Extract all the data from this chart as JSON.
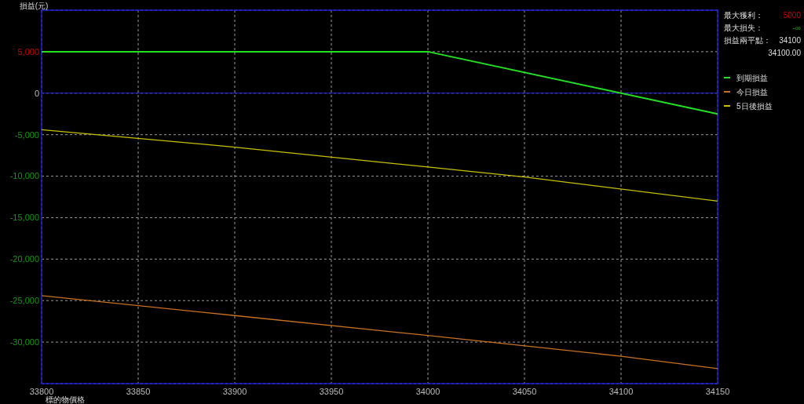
{
  "chart_data": {
    "type": "line",
    "xlabel": "標的物價格",
    "ylabel": "損益(元)",
    "xlim": [
      33800,
      34150
    ],
    "xticks": [
      33800,
      33850,
      33900,
      33950,
      34000,
      34050,
      34100,
      34150
    ],
    "ylim": [
      -35000,
      10000
    ],
    "yticks": [
      {
        "value": 10000,
        "label": null
      },
      {
        "value": 5000,
        "label": "5,000"
      },
      0,
      {
        "value": -5000,
        "label": "-5,000"
      },
      {
        "value": -10000,
        "label": "-10,000"
      },
      {
        "value": -15000,
        "label": "-15,000"
      },
      {
        "value": -20000,
        "label": "-20,000"
      },
      {
        "value": -25000,
        "label": "-25,000"
      },
      {
        "value": -30000,
        "label": "-30,000"
      },
      {
        "value": -35000,
        "label": null
      }
    ],
    "grid": true,
    "legend": "right",
    "line_style": "solid",
    "marker": "none",
    "ref_lines": [
      {
        "axis": "y",
        "value": 0,
        "color": "#1a1acc"
      }
    ],
    "annotations": [
      "最大獲利： 5000",
      "最大損失： -∞",
      "損益兩平點： 34100",
      "34100.00"
    ],
    "series": [
      {
        "name": "到期損益",
        "color": "#22e022",
        "x": [
          33800,
          34000,
          34150
        ],
        "values": [
          5000,
          5000,
          -2500
        ]
      },
      {
        "name": "今日損益",
        "color": "#c87020",
        "x": [
          33800,
          33900,
          34000,
          34100,
          34150
        ],
        "values": [
          -24400,
          -26800,
          -29200,
          -31700,
          -33200
        ]
      },
      {
        "name": "5日後損益",
        "color": "#c8c000",
        "x": [
          33800,
          33900,
          34000,
          34050,
          34150
        ],
        "values": [
          -4400,
          -6500,
          -8900,
          -10100,
          -13000
        ]
      }
    ]
  }
}
